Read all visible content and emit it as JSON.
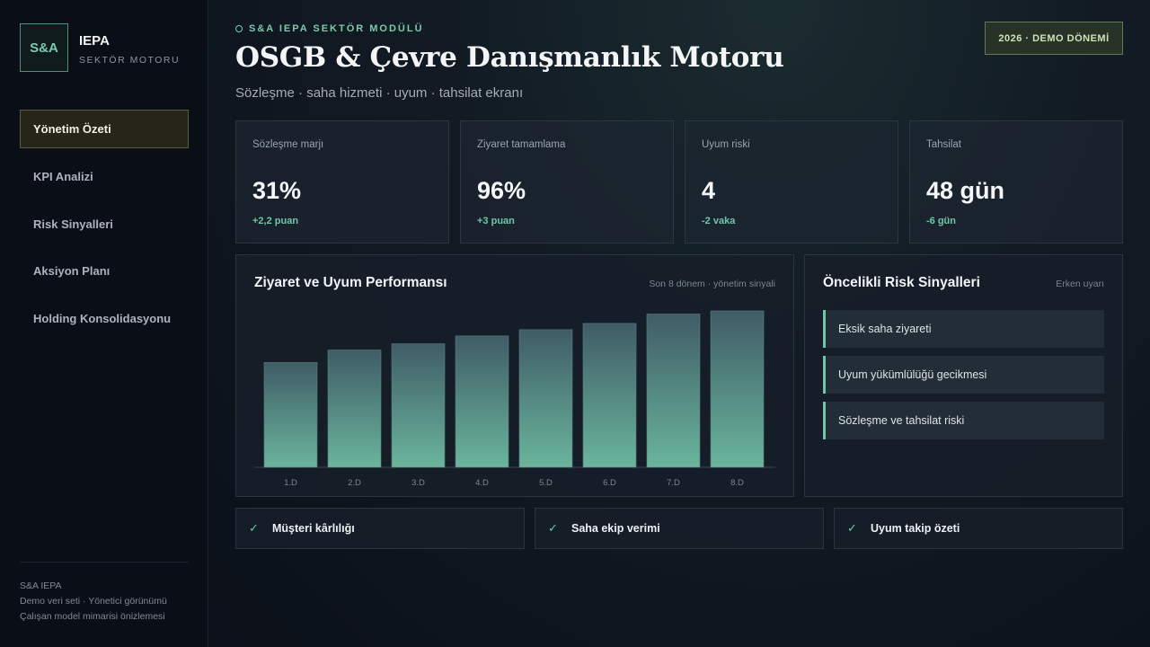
{
  "sidebar": {
    "logo_text": "S&A",
    "brand_title": "IEPA",
    "brand_subtitle": "SEKTÖR MOTORU",
    "nav": [
      {
        "label": "Yönetim Özeti",
        "active": true
      },
      {
        "label": "KPI Analizi",
        "active": false
      },
      {
        "label": "Risk Sinyalleri",
        "active": false
      },
      {
        "label": "Aksiyon Planı",
        "active": false
      },
      {
        "label": "Holding Konsolidasyonu",
        "active": false
      }
    ],
    "footer": [
      "S&A IEPA",
      "Demo veri seti · Yönetici görünümü",
      "Çalışan model mimarisi önizlemesi"
    ]
  },
  "header": {
    "eyebrow": "S&A IEPA SEKTÖR MODÜLÜ",
    "title": "OSGB & Çevre Danışmanlık Motoru",
    "subtitle": "Sözleşme · saha hizmeti · uyum · tahsilat ekranı",
    "period_badge": "2026 · DEMO DÖNEMİ"
  },
  "kpis": [
    {
      "label": "Sözleşme marjı",
      "value": "31%",
      "delta": "+2,2 puan"
    },
    {
      "label": "Ziyaret tamamlama",
      "value": "96%",
      "delta": "+3 puan"
    },
    {
      "label": "Uyum riski",
      "value": "4",
      "delta": "-2 vaka"
    },
    {
      "label": "Tahsilat",
      "value": "48 gün",
      "delta": "-6 gün"
    }
  ],
  "performance_panel": {
    "title": "Ziyaret ve Uyum Performansı",
    "note": "Son 8 dönem · yönetim sinyali"
  },
  "chart_data": {
    "type": "bar",
    "categories": [
      "1.D",
      "2.D",
      "3.D",
      "4.D",
      "5.D",
      "6.D",
      "7.D",
      "8.D"
    ],
    "values": [
      67,
      75,
      79,
      84,
      88,
      92,
      98,
      100
    ],
    "title": "Ziyaret ve Uyum Performansı",
    "xlabel": "",
    "ylabel": "",
    "ylim": [
      0,
      100
    ],
    "grid": false,
    "colors": {
      "top": "#3f5c66",
      "bottom": "#6ab59c"
    }
  },
  "risk_panel": {
    "title": "Öncelikli Risk Sinyalleri",
    "note": "Erken uyarı",
    "items": [
      "Eksik saha ziyareti",
      "Uyum yükümlülüğü gecikmesi",
      "Sözleşme ve tahsilat riski"
    ]
  },
  "bottom_cards": [
    {
      "icon": "check-icon",
      "label": "Müşteri kârlılığı"
    },
    {
      "icon": "check-icon",
      "label": "Saha ekip verimi"
    },
    {
      "icon": "check-icon",
      "label": "Uyum takip özeti"
    }
  ],
  "colors": {
    "accent": "#6fc6a6",
    "badge_bg": "#263326",
    "active_nav_bg": "#262519"
  }
}
